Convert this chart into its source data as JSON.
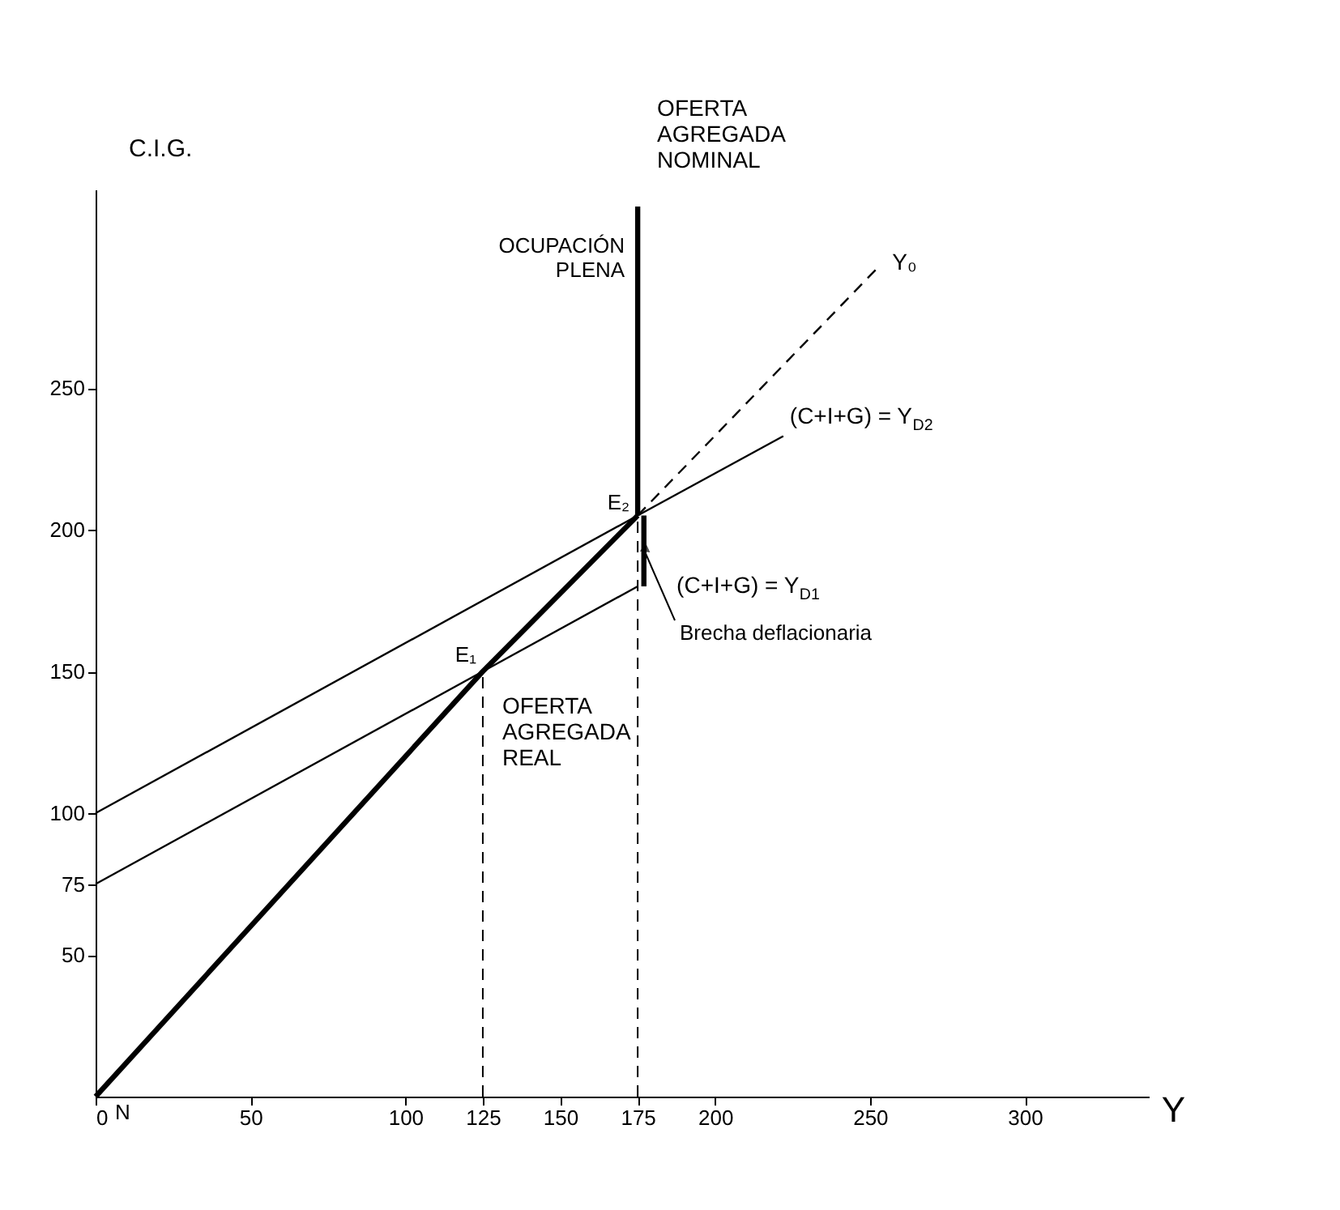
{
  "chart_data": {
    "type": "line",
    "xlabel": "Y",
    "ylabel": "C.I.G.",
    "xlim": [
      0,
      340
    ],
    "ylim": [
      0,
      320
    ],
    "xticks": [
      0,
      50,
      100,
      125,
      150,
      175,
      200,
      250,
      300
    ],
    "yticks": [
      50,
      75,
      100,
      150,
      200,
      250
    ],
    "grid": false,
    "series": [
      {
        "name": "OFERTA AGREGADA REAL",
        "color": "#000000",
        "x": [
          0,
          125,
          175
        ],
        "values": [
          0,
          150,
          205
        ]
      },
      {
        "name": "Y₀",
        "color": "#000000",
        "x": [
          175,
          253
        ],
        "values": [
          205,
          293
        ],
        "line_style": "dashed"
      },
      {
        "name": "(C+I+G) = Y$_{D1}$",
        "color": "#000000",
        "x": [
          0,
          125,
          175
        ],
        "values": [
          75,
          150,
          180
        ]
      },
      {
        "name": "(C+I+G) = Y$_{D2}$",
        "color": "#000000",
        "x": [
          0,
          175,
          222
        ],
        "values": [
          100,
          205,
          233
        ]
      },
      {
        "name": "OFERTA AGREGADA NOMINAL",
        "color": "#000000",
        "x": [
          175,
          175
        ],
        "values": [
          205,
          314
        ]
      },
      {
        "color": "#000000",
        "x": [
          175,
          175
        ],
        "values": [
          0,
          205
        ],
        "line_style": "dashed"
      },
      {
        "color": "#000000",
        "x": [
          125,
          125
        ],
        "values": [
          0,
          150
        ],
        "line_style": "dashed"
      },
      {
        "color": "#000000",
        "x": [
          177,
          177
        ],
        "values": [
          180,
          205
        ]
      }
    ],
    "annotations": [
      {
        "text": "E₁",
        "x": 125,
        "y": 150
      },
      {
        "text": "E₂",
        "x": 175,
        "y": 205
      },
      {
        "text": "N",
        "x": 0,
        "y": 0
      },
      {
        "text": "Brecha deflacionaria",
        "x": 177,
        "y": 193
      },
      {
        "text": "OCUPACIÓN PLENA",
        "x": 175,
        "y": 300
      }
    ]
  }
}
